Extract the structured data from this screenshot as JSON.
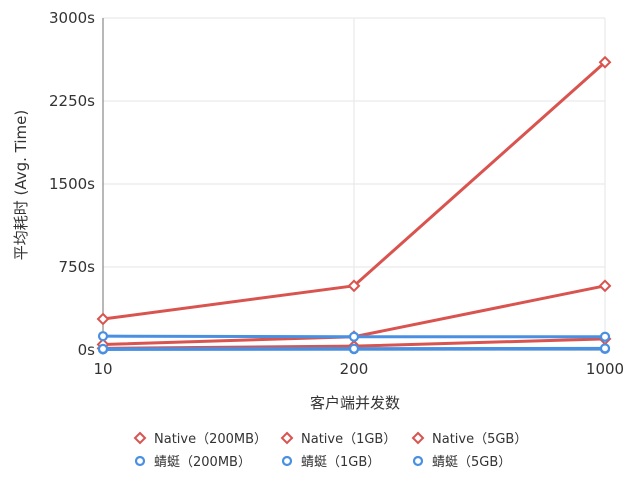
{
  "chart_data": {
    "type": "line",
    "title": "",
    "xlabel": "客户端并发数",
    "ylabel": "平均耗时 (Avg. Time)",
    "x_categories": [
      "10",
      "200",
      "1000"
    ],
    "y_ticks": [
      "0s",
      "750s",
      "1500s",
      "2250s",
      "3000s"
    ],
    "ylim": [
      0,
      3000
    ],
    "grid": true,
    "legend_position": "bottom",
    "series": [
      {
        "name": "Native（200MB）",
        "values": [
          15,
          35,
          100
        ],
        "color": "#d9534f",
        "marker": "diamond"
      },
      {
        "name": "Native（1GB）",
        "values": [
          50,
          120,
          580
        ],
        "color": "#d9534f",
        "marker": "diamond"
      },
      {
        "name": "Native（5GB）",
        "values": [
          280,
          580,
          2600
        ],
        "color": "#d9534f",
        "marker": "diamond"
      },
      {
        "name": "蜻蜓（200MB）",
        "values": [
          5,
          8,
          10
        ],
        "color": "#4a90e2",
        "marker": "circle"
      },
      {
        "name": "蜻蜓（1GB）",
        "values": [
          10,
          12,
          15
        ],
        "color": "#4a90e2",
        "marker": "circle"
      },
      {
        "name": "蜻蜓（5GB）",
        "values": [
          125,
          120,
          120
        ],
        "color": "#4a90e2",
        "marker": "circle"
      }
    ]
  }
}
